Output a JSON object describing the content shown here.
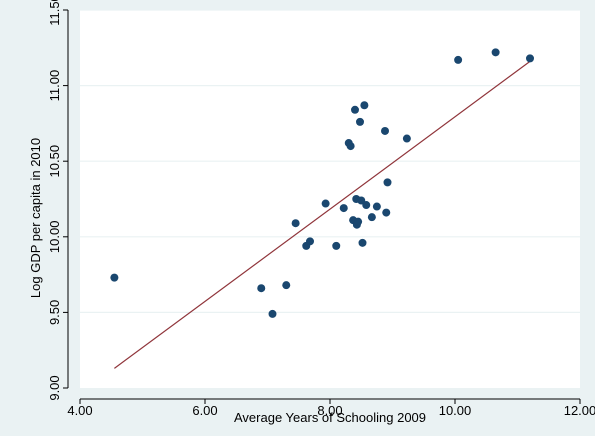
{
  "chart_data": {
    "type": "scatter",
    "title": "",
    "xlabel": "Average Years of Schooling 2009",
    "ylabel": "Log GDP per capita in 2010",
    "xlim": [
      4.0,
      12.0
    ],
    "ylim": [
      9.0,
      11.5
    ],
    "x_ticks": [
      4.0,
      6.0,
      8.0,
      10.0,
      12.0
    ],
    "x_tick_labels": [
      "4.00",
      "6.00",
      "8.00",
      "10.00",
      "12.00"
    ],
    "y_ticks": [
      9.0,
      9.5,
      10.0,
      10.5,
      11.0,
      11.5
    ],
    "y_tick_labels": [
      "9.00",
      "9.50",
      "10.00",
      "10.50",
      "11.00",
      "11.50"
    ],
    "grid": "horizontal",
    "legend": "none",
    "colors": {
      "outer_background": "#eaf2f3",
      "plot_background": "#ffffff",
      "grid": "#eaf2f3",
      "points": "#1a476f",
      "fit_line": "#90353b",
      "axis": "#000000"
    },
    "points": [
      {
        "x": 4.55,
        "y": 9.73
      },
      {
        "x": 6.9,
        "y": 9.66
      },
      {
        "x": 7.08,
        "y": 9.49
      },
      {
        "x": 7.3,
        "y": 9.68
      },
      {
        "x": 7.45,
        "y": 10.09
      },
      {
        "x": 7.62,
        "y": 9.94
      },
      {
        "x": 7.68,
        "y": 9.97
      },
      {
        "x": 7.93,
        "y": 10.22
      },
      {
        "x": 8.1,
        "y": 9.94
      },
      {
        "x": 8.22,
        "y": 10.19
      },
      {
        "x": 8.3,
        "y": 10.62
      },
      {
        "x": 8.33,
        "y": 10.6
      },
      {
        "x": 8.37,
        "y": 10.11
      },
      {
        "x": 8.4,
        "y": 10.84
      },
      {
        "x": 8.42,
        "y": 10.25
      },
      {
        "x": 8.43,
        "y": 10.08
      },
      {
        "x": 8.45,
        "y": 10.1
      },
      {
        "x": 8.48,
        "y": 10.76
      },
      {
        "x": 8.5,
        "y": 10.24
      },
      {
        "x": 8.52,
        "y": 9.96
      },
      {
        "x": 8.55,
        "y": 10.87
      },
      {
        "x": 8.58,
        "y": 10.21
      },
      {
        "x": 8.67,
        "y": 10.13
      },
      {
        "x": 8.75,
        "y": 10.2
      },
      {
        "x": 8.88,
        "y": 10.7
      },
      {
        "x": 8.9,
        "y": 10.16
      },
      {
        "x": 8.92,
        "y": 10.36
      },
      {
        "x": 9.23,
        "y": 10.65
      },
      {
        "x": 10.05,
        "y": 11.17
      },
      {
        "x": 10.65,
        "y": 11.22
      },
      {
        "x": 11.2,
        "y": 11.18
      }
    ],
    "fit_line": {
      "x": [
        4.55,
        11.2
      ],
      "y": [
        9.13,
        11.16
      ]
    }
  }
}
